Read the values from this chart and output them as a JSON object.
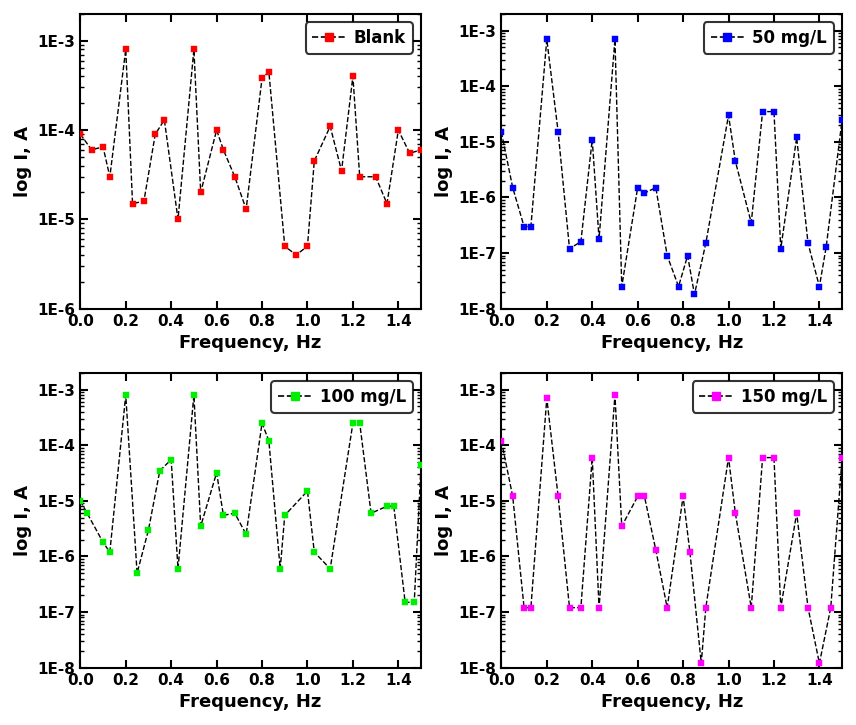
{
  "subplots": [
    {
      "label": "Blank",
      "color": "#FF0000",
      "ylim": [
        1e-06,
        0.002
      ],
      "yticks": [
        1e-06,
        1e-05,
        0.0001,
        0.001
      ],
      "yticklabels": [
        "1E-6",
        "1E-5",
        "1E-4",
        "1E-3"
      ],
      "freq": [
        0.0,
        0.05,
        0.1,
        0.13,
        0.2,
        0.23,
        0.28,
        0.33,
        0.37,
        0.43,
        0.5,
        0.53,
        0.6,
        0.63,
        0.68,
        0.73,
        0.8,
        0.83,
        0.9,
        0.95,
        1.0,
        1.03,
        1.1,
        1.15,
        1.2,
        1.23,
        1.3,
        1.35,
        1.4,
        1.45,
        1.5
      ],
      "current": [
        9e-05,
        6e-05,
        6.5e-05,
        3e-05,
        0.0008,
        1.5e-05,
        1.6e-05,
        9e-05,
        0.00013,
        1e-05,
        0.0008,
        2e-05,
        0.0001,
        6e-05,
        3e-05,
        1.3e-05,
        0.00038,
        0.00045,
        5e-06,
        4e-06,
        5e-06,
        4.5e-05,
        0.00011,
        3.5e-05,
        0.0004,
        3e-05,
        3e-05,
        1.5e-05,
        0.0001,
        5.5e-05,
        6e-05
      ]
    },
    {
      "label": "50 mg/L",
      "color": "#0000FF",
      "ylim": [
        1e-08,
        0.002
      ],
      "yticks": [
        1e-08,
        1e-07,
        1e-06,
        1e-05,
        0.0001,
        0.001
      ],
      "yticklabels": [
        "1E-8",
        "1E-7",
        "1E-6",
        "1E-5",
        "1E-4",
        "1E-3"
      ],
      "freq": [
        0.0,
        0.05,
        0.1,
        0.13,
        0.2,
        0.25,
        0.3,
        0.35,
        0.4,
        0.43,
        0.5,
        0.53,
        0.6,
        0.63,
        0.68,
        0.73,
        0.78,
        0.82,
        0.85,
        0.9,
        1.0,
        1.03,
        1.1,
        1.15,
        1.2,
        1.23,
        1.3,
        1.35,
        1.4,
        1.43,
        1.5
      ],
      "current": [
        1.5e-05,
        1.5e-06,
        3e-07,
        3e-07,
        0.0007,
        1.5e-05,
        1.2e-07,
        1.6e-07,
        1.1e-05,
        1.8e-07,
        0.0007,
        2.5e-08,
        1.5e-06,
        1.2e-06,
        1.5e-06,
        9e-08,
        2.5e-08,
        9e-08,
        1.8e-08,
        1.5e-07,
        3e-05,
        4.5e-06,
        3.5e-07,
        3.5e-05,
        3.5e-05,
        1.2e-07,
        1.2e-05,
        1.5e-07,
        2.5e-08,
        1.3e-07,
        2.5e-05
      ]
    },
    {
      "label": "100 mg/L",
      "color": "#00EE00",
      "ylim": [
        1e-08,
        0.002
      ],
      "yticks": [
        1e-08,
        1e-07,
        1e-06,
        1e-05,
        0.0001,
        0.001
      ],
      "yticklabels": [
        "1E-8",
        "1E-7",
        "1E-6",
        "1E-5",
        "1E-4",
        "1E-3"
      ],
      "freq": [
        0.0,
        0.03,
        0.1,
        0.13,
        0.2,
        0.25,
        0.3,
        0.35,
        0.4,
        0.43,
        0.5,
        0.53,
        0.6,
        0.63,
        0.68,
        0.73,
        0.8,
        0.83,
        0.88,
        0.9,
        1.0,
        1.03,
        1.1,
        1.2,
        1.23,
        1.28,
        1.35,
        1.38,
        1.43,
        1.47,
        1.5
      ],
      "current": [
        1e-05,
        6e-06,
        1.8e-06,
        1.2e-06,
        0.0008,
        5e-07,
        3e-06,
        3.5e-05,
        5.5e-05,
        6e-07,
        0.0008,
        3.5e-06,
        3.2e-05,
        5.5e-06,
        6e-06,
        2.5e-06,
        0.00025,
        0.00012,
        6e-07,
        5.5e-06,
        1.5e-05,
        1.2e-06,
        6e-07,
        0.00025,
        0.00025,
        6e-06,
        8e-06,
        8e-06,
        1.5e-07,
        1.5e-07,
        4.5e-05
      ]
    },
    {
      "label": "150 mg/L",
      "color": "#FF00FF",
      "ylim": [
        1e-08,
        0.002
      ],
      "yticks": [
        1e-08,
        1e-07,
        1e-06,
        1e-05,
        0.0001,
        0.001
      ],
      "yticklabels": [
        "1E-8",
        "1E-7",
        "1E-6",
        "1E-5",
        "1E-4",
        "1E-3"
      ],
      "freq": [
        0.0,
        0.05,
        0.1,
        0.13,
        0.2,
        0.25,
        0.3,
        0.35,
        0.4,
        0.43,
        0.5,
        0.53,
        0.6,
        0.63,
        0.68,
        0.73,
        0.8,
        0.83,
        0.88,
        0.9,
        1.0,
        1.03,
        1.1,
        1.15,
        1.2,
        1.23,
        1.3,
        1.35,
        1.4,
        1.45,
        1.5
      ],
      "current": [
        0.00012,
        1.2e-05,
        1.2e-07,
        1.2e-07,
        0.0007,
        1.2e-05,
        1.2e-07,
        1.2e-07,
        6e-05,
        1.2e-07,
        0.0008,
        3.5e-06,
        1.2e-05,
        1.2e-05,
        1.3e-06,
        1.2e-07,
        1.2e-05,
        1.2e-06,
        1.2e-08,
        1.2e-07,
        6e-05,
        6e-06,
        1.2e-07,
        6e-05,
        6e-05,
        1.2e-07,
        6e-06,
        1.2e-07,
        1.2e-08,
        1.2e-07,
        6e-05
      ]
    }
  ],
  "xlabel": "Frequency, Hz",
  "ylabel": "log I, A",
  "xlim": [
    0.0,
    1.5
  ],
  "xticks": [
    0.0,
    0.2,
    0.4,
    0.6,
    0.8,
    1.0,
    1.2,
    1.4
  ],
  "line_color": "#000000",
  "line_style": "--",
  "marker": "s",
  "markersize": 5,
  "linewidth": 1.0,
  "bg_color": "#FFFFFF"
}
